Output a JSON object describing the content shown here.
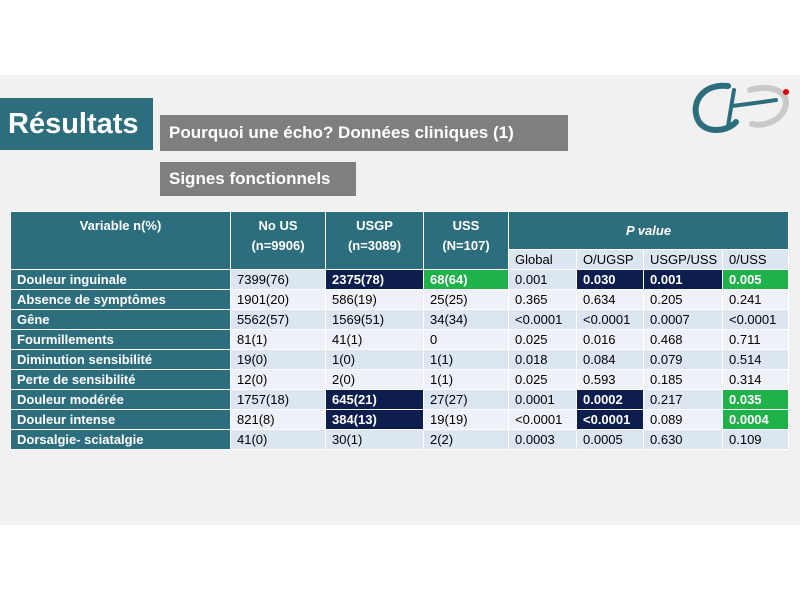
{
  "title": "Résultats",
  "subtitle": "Pourquoi une écho? Données cliniques (1)",
  "section": "Signes fonctionnels",
  "logo": {
    "icon": "chi-logo",
    "colors": [
      "#2d6e7e",
      "#e00000"
    ]
  },
  "colors": {
    "header": "#2d6e7e",
    "highlight_navy": "#0d1e4e",
    "highlight_green": "#1fb14a",
    "row_light": "#dce6f1",
    "row_lighter": "#eef2f8",
    "gray_box": "#7f7f7f"
  },
  "table": {
    "header": {
      "variable": "Variable n(%)",
      "nous": "No US",
      "nous_n": "(n=9906)",
      "usgp": "USGP",
      "usgp_n": "(n=3089)",
      "uss": "USS",
      "uss_n": "(N=107)",
      "pvalue": "P value",
      "sub": [
        "Global",
        "O/UGSP",
        "USGP/USS",
        "0/USS"
      ]
    },
    "rows": [
      {
        "variable": "Douleur inguinale",
        "cells": [
          "7399(76)",
          "2375(78)",
          "68(64)",
          "0.001",
          "0.030",
          "0.001",
          "0.005"
        ]
      },
      {
        "variable": "Absence de symptômes",
        "cells": [
          "1901(20)",
          "586(19)",
          "25(25)",
          "0.365",
          "0.634",
          "0.205",
          "0.241"
        ]
      },
      {
        "variable": "Gêne",
        "cells": [
          "5562(57)",
          "1569(51)",
          "34(34)",
          "<0.0001",
          "<0.0001",
          "0.0007",
          "<0.0001"
        ]
      },
      {
        "variable": "Fourmillements",
        "cells": [
          "81(1)",
          "41(1)",
          "0",
          "0.025",
          "0.016",
          "0.468",
          "0.711"
        ]
      },
      {
        "variable": "Diminution sensibilité",
        "cells": [
          "19(0)",
          "1(0)",
          "1(1)",
          "0.018",
          "0.084",
          "0.079",
          "0.514"
        ]
      },
      {
        "variable": "Perte de sensibilité",
        "cells": [
          "12(0)",
          "2(0)",
          "1(1)",
          "0.025",
          "0.593",
          "0.185",
          "0.314"
        ]
      },
      {
        "variable": "Douleur modérée",
        "cells": [
          "1757(18)",
          "645(21)",
          "27(27)",
          "0.0001",
          "0.0002",
          "0.217",
          "0.035"
        ]
      },
      {
        "variable": "Douleur intense",
        "cells": [
          "821(8)",
          "384(13)",
          "19(19)",
          "<0.0001",
          "<0.0001",
          "0.089",
          "0.0004"
        ]
      },
      {
        "variable": "Dorsalgie- sciatalgie",
        "cells": [
          "41(0)",
          "30(1)",
          "2(2)",
          "0.0003",
          "0.0005",
          "0.630",
          "0.109"
        ]
      }
    ]
  }
}
